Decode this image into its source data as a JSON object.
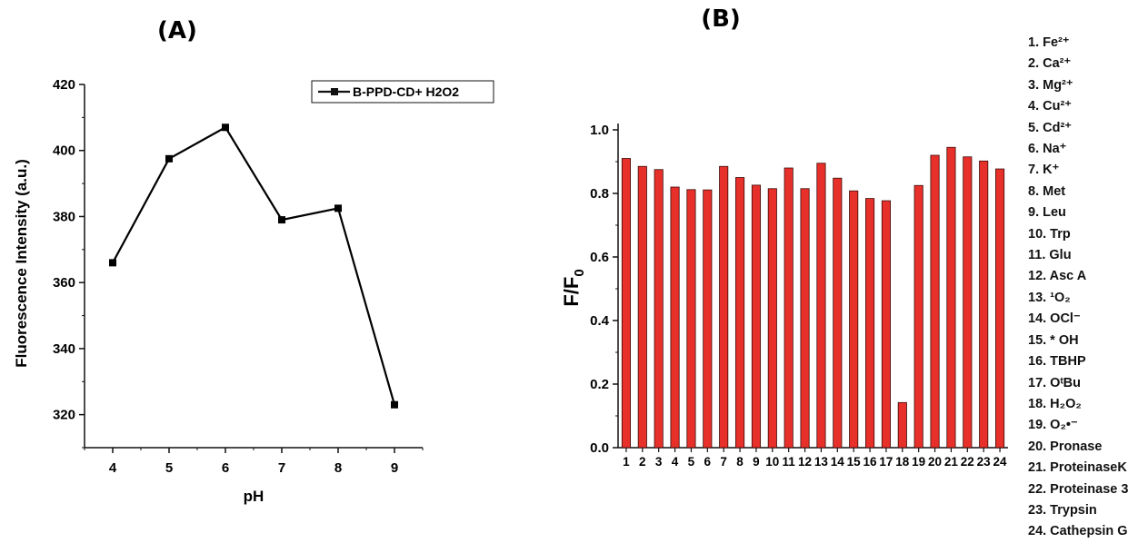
{
  "chart_data": [
    {
      "panel": "(A)",
      "type": "line",
      "xlabel": "pH",
      "ylabel": "Fluorescence Intensity (a.u.)",
      "x": [
        4,
        5,
        6,
        7,
        8,
        9
      ],
      "xlim": [
        3.5,
        9.5
      ],
      "ylim": [
        310,
        420
      ],
      "yticks": [
        320,
        340,
        360,
        380,
        400,
        420
      ],
      "xticks": [
        4,
        5,
        6,
        7,
        8,
        9
      ],
      "series": [
        {
          "name": "B-PPD-CD+ H2O2",
          "values": [
            366,
            397.5,
            407,
            379,
            382.5,
            323
          ],
          "color": "#000000",
          "marker": "square"
        }
      ],
      "legend": "top-right",
      "grid": false
    },
    {
      "panel": "(B)",
      "type": "bar",
      "xlabel": "",
      "ylabel": "F/F0",
      "ylim": [
        0,
        1.02
      ],
      "yticks": [
        "0.0",
        "0.2",
        "0.4",
        "0.6",
        "0.8",
        "1.0"
      ],
      "categories": [
        "1",
        "2",
        "3",
        "4",
        "5",
        "6",
        "7",
        "8",
        "9",
        "10",
        "11",
        "12",
        "13",
        "14",
        "15",
        "16",
        "17",
        "18",
        "19",
        "20",
        "21",
        "22",
        "23",
        "24"
      ],
      "values": [
        0.91,
        0.885,
        0.875,
        0.82,
        0.812,
        0.811,
        0.885,
        0.85,
        0.826,
        0.815,
        0.88,
        0.815,
        0.895,
        0.848,
        0.808,
        0.784,
        0.777,
        0.142,
        0.825,
        0.92,
        0.945,
        0.915,
        0.902,
        0.877
      ],
      "bar_color": "#e8302a",
      "grid": false
    }
  ],
  "analyte_list": [
    "1. Fe²⁺",
    "2. Ca²⁺",
    "3. Mg²⁺",
    "4. Cu²⁺",
    "5. Cd²⁺",
    "6. Na⁺",
    "7. K⁺",
    "8. Met",
    "9. Leu",
    "10. Trp",
    "11. Glu",
    "12. Asc A",
    "13. ¹O₂",
    "14. OCl⁻",
    "15. * OH",
    "16. TBHP",
    "17. OᵗBu",
    "18. H₂O₂",
    "19. O₂•⁻",
    "20. Pronase",
    "21. ProteinaseK",
    "22. Proteinase 3",
    "23. Trypsin",
    "24. Cathepsin G"
  ]
}
